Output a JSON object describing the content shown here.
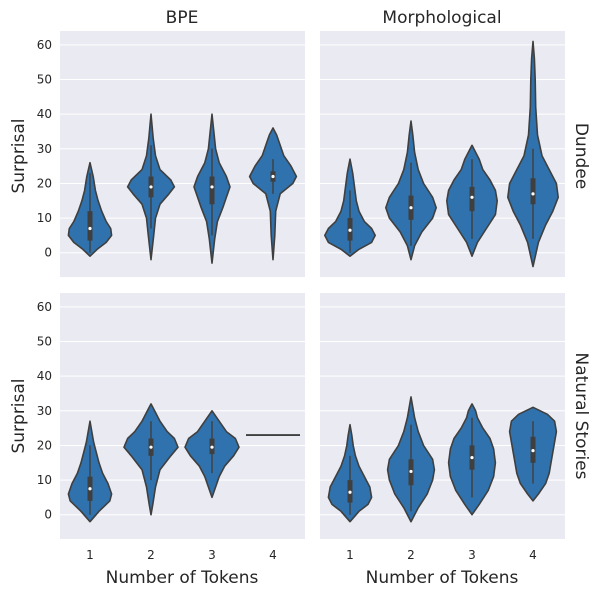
{
  "chart_data": {
    "type": "violin",
    "columns": [
      "BPE",
      "Morphological"
    ],
    "rows": [
      "Dundee",
      "Natural Stories"
    ],
    "xlabel": "Number of Tokens",
    "ylabel": "Surprisal",
    "categories": [
      "1",
      "2",
      "3",
      "4"
    ],
    "yticks": [
      0,
      10,
      20,
      30,
      40,
      50,
      60
    ],
    "ylim": [
      -7,
      64
    ],
    "grid": true,
    "color": "#2f72ad",
    "panels": [
      {
        "row": "Dundee",
        "column": "BPE",
        "violins": [
          {
            "category": "1",
            "min": -1,
            "max": 26,
            "q1": 3.5,
            "median": 7,
            "q3": 12,
            "wlo": 0,
            "whi": 23,
            "profile": [
              [
                -1,
                0
              ],
              [
                1,
                4
              ],
              [
                3,
                9
              ],
              [
                5,
                12
              ],
              [
                7,
                11.5
              ],
              [
                9,
                9
              ],
              [
                12,
                6.5
              ],
              [
                15,
                4.5
              ],
              [
                18,
                3
              ],
              [
                22,
                1.8
              ],
              [
                26,
                0
              ]
            ]
          },
          {
            "category": "2",
            "min": -2,
            "max": 40,
            "q1": 16,
            "median": 19,
            "q3": 22,
            "wlo": 7,
            "whi": 31,
            "profile": [
              [
                -2,
                0
              ],
              [
                5,
                1.5
              ],
              [
                10,
                2.5
              ],
              [
                14,
                5
              ],
              [
                17,
                10
              ],
              [
                19,
                13
              ],
              [
                21,
                11
              ],
              [
                24,
                5
              ],
              [
                28,
                2.5
              ],
              [
                33,
                1.2
              ],
              [
                40,
                0
              ]
            ]
          },
          {
            "category": "3",
            "min": -3,
            "max": 40,
            "q1": 14,
            "median": 19,
            "q3": 22,
            "wlo": 5,
            "whi": 30,
            "profile": [
              [
                -3,
                0
              ],
              [
                4,
                1.5
              ],
              [
                9,
                3
              ],
              [
                13,
                6
              ],
              [
                16,
                8
              ],
              [
                19,
                10
              ],
              [
                22,
                8
              ],
              [
                26,
                4
              ],
              [
                30,
                2
              ],
              [
                35,
                1
              ],
              [
                40,
                0
              ]
            ]
          },
          {
            "category": "4",
            "min": -2,
            "max": 36,
            "q1": 20.5,
            "median": 22,
            "q3": 23.5,
            "wlo": 17,
            "whi": 27,
            "profile": [
              [
                -2,
                0
              ],
              [
                5,
                1
              ],
              [
                12,
                1.5
              ],
              [
                17,
                4
              ],
              [
                20,
                11
              ],
              [
                22,
                13
              ],
              [
                25,
                10
              ],
              [
                28,
                6
              ],
              [
                31,
                4
              ],
              [
                34,
                2
              ],
              [
                36,
                0
              ]
            ]
          }
        ]
      },
      {
        "row": "Dundee",
        "column": "Morphological",
        "violins": [
          {
            "category": "1",
            "min": -1,
            "max": 27,
            "q1": 3.5,
            "median": 6.5,
            "q3": 10,
            "wlo": 0,
            "whi": 18,
            "profile": [
              [
                -1,
                0
              ],
              [
                1,
                5
              ],
              [
                3,
                12
              ],
              [
                5,
                14
              ],
              [
                7,
                12
              ],
              [
                9,
                8
              ],
              [
                12,
                5
              ],
              [
                15,
                3.5
              ],
              [
                19,
                2.5
              ],
              [
                23,
                1.5
              ],
              [
                27,
                0
              ]
            ]
          },
          {
            "category": "2",
            "min": -2,
            "max": 38,
            "q1": 9.5,
            "median": 13,
            "q3": 16.5,
            "wlo": 2,
            "whi": 26,
            "profile": [
              [
                -2,
                0
              ],
              [
                2,
                2
              ],
              [
                6,
                6
              ],
              [
                10,
                12
              ],
              [
                13,
                14
              ],
              [
                16,
                12
              ],
              [
                20,
                7
              ],
              [
                24,
                4
              ],
              [
                29,
                2
              ],
              [
                34,
                1
              ],
              [
                38,
                0
              ]
            ]
          },
          {
            "category": "3",
            "min": -1,
            "max": 31,
            "q1": 12,
            "median": 16,
            "q3": 19,
            "wlo": 4,
            "whi": 27,
            "profile": [
              [
                -1,
                0
              ],
              [
                3,
                3
              ],
              [
                7,
                8
              ],
              [
                11,
                13
              ],
              [
                15,
                14
              ],
              [
                18,
                13
              ],
              [
                21,
                10
              ],
              [
                24,
                6
              ],
              [
                27,
                4
              ],
              [
                29,
                2
              ],
              [
                31,
                0
              ]
            ]
          },
          {
            "category": "4",
            "min": -4,
            "max": 61,
            "q1": 14,
            "median": 17,
            "q3": 21.5,
            "wlo": 4,
            "whi": 30,
            "profile": [
              [
                -4,
                0
              ],
              [
                3,
                3
              ],
              [
                8,
                7
              ],
              [
                12,
                11
              ],
              [
                16,
                14
              ],
              [
                20,
                13
              ],
              [
                24,
                9
              ],
              [
                28,
                5
              ],
              [
                34,
                2.5
              ],
              [
                42,
                1.5
              ],
              [
                50,
                1.2
              ],
              [
                56,
                0.8
              ],
              [
                61,
                0
              ]
            ]
          }
        ]
      },
      {
        "row": "Natural Stories",
        "column": "BPE",
        "violins": [
          {
            "category": "1",
            "min": -2,
            "max": 27,
            "q1": 4,
            "median": 7.5,
            "q3": 11,
            "wlo": 0,
            "whi": 20,
            "profile": [
              [
                -2,
                0
              ],
              [
                1,
                5
              ],
              [
                4,
                11
              ],
              [
                6,
                12
              ],
              [
                9,
                10
              ],
              [
                12,
                7
              ],
              [
                15,
                5
              ],
              [
                18,
                3.5
              ],
              [
                21,
                2
              ],
              [
                24,
                1
              ],
              [
                27,
                0
              ]
            ]
          },
          {
            "category": "2",
            "min": 0,
            "max": 32,
            "q1": 17,
            "median": 19.5,
            "q3": 22,
            "wlo": 10,
            "whi": 27,
            "profile": [
              [
                0,
                0
              ],
              [
                3,
                1
              ],
              [
                8,
                2.5
              ],
              [
                13,
                5
              ],
              [
                17,
                11
              ],
              [
                19.5,
                15
              ],
              [
                22,
                13
              ],
              [
                24,
                9
              ],
              [
                27,
                5
              ],
              [
                30,
                2
              ],
              [
                32,
                0
              ]
            ]
          },
          {
            "category": "3",
            "min": 5,
            "max": 30,
            "q1": 17.5,
            "median": 19.5,
            "q3": 22,
            "wlo": 12,
            "whi": 27,
            "profile": [
              [
                5,
                0
              ],
              [
                8,
                2
              ],
              [
                11,
                4
              ],
              [
                14,
                7
              ],
              [
                17,
                12
              ],
              [
                19.5,
                15
              ],
              [
                22,
                13
              ],
              [
                24,
                8
              ],
              [
                27,
                4
              ],
              [
                30,
                0
              ]
            ]
          },
          {
            "category": "4",
            "line": 23
          }
        ]
      },
      {
        "row": "Natural Stories",
        "column": "Morphological",
        "violins": [
          {
            "category": "1",
            "min": -2,
            "max": 26,
            "q1": 3.5,
            "median": 6.5,
            "q3": 10,
            "wlo": 0,
            "whi": 17,
            "profile": [
              [
                -2,
                0
              ],
              [
                1,
                5
              ],
              [
                3,
                10
              ],
              [
                5,
                12
              ],
              [
                8,
                11
              ],
              [
                11,
                8
              ],
              [
                14,
                5
              ],
              [
                17,
                3
              ],
              [
                20,
                1.8
              ],
              [
                23,
                1
              ],
              [
                26,
                0
              ]
            ]
          },
          {
            "category": "2",
            "min": -2,
            "max": 34,
            "q1": 8.5,
            "median": 12.5,
            "q3": 16,
            "wlo": 1,
            "whi": 26,
            "profile": [
              [
                -2,
                0
              ],
              [
                2,
                4
              ],
              [
                6,
                9
              ],
              [
                10,
                12
              ],
              [
                13,
                13
              ],
              [
                16,
                12
              ],
              [
                20,
                7
              ],
              [
                24,
                4
              ],
              [
                28,
                2
              ],
              [
                31,
                1
              ],
              [
                34,
                0
              ]
            ]
          },
          {
            "category": "3",
            "min": 0,
            "max": 32,
            "q1": 13,
            "median": 16.5,
            "q3": 20,
            "wlo": 5,
            "whi": 28,
            "profile": [
              [
                0,
                0
              ],
              [
                3,
                4
              ],
              [
                7,
                9
              ],
              [
                11,
                12
              ],
              [
                15,
                13
              ],
              [
                19,
                12
              ],
              [
                22,
                10
              ],
              [
                25,
                6
              ],
              [
                28,
                3
              ],
              [
                30,
                2
              ],
              [
                32,
                0
              ]
            ]
          },
          {
            "category": "4",
            "min": 4,
            "max": 31,
            "q1": 15,
            "median": 18.5,
            "q3": 22.5,
            "wlo": 9,
            "whi": 27,
            "profile": [
              [
                4,
                0
              ],
              [
                6,
                3
              ],
              [
                9,
                7
              ],
              [
                12,
                9
              ],
              [
                15,
                10
              ],
              [
                18,
                11
              ],
              [
                21,
                12
              ],
              [
                24,
                13
              ],
              [
                27,
                12
              ],
              [
                29,
                8
              ],
              [
                31,
                0
              ]
            ]
          }
        ]
      }
    ]
  }
}
